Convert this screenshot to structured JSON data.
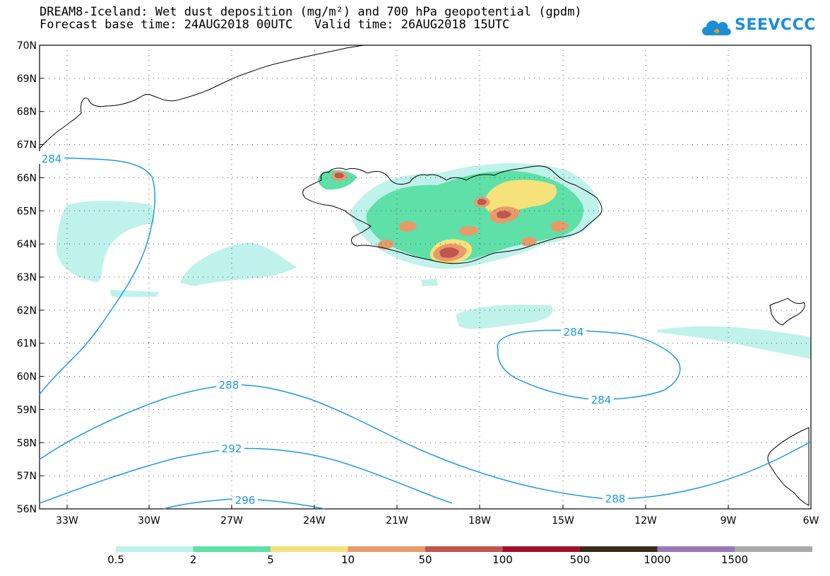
{
  "header": {
    "title_line1": "DREAM8-Iceland: Wet dust deposition (mg/m²) and 700 hPa geopotential (gpdm)",
    "base_label": "Forecast base time: 24AUG2018 00UTC",
    "valid_label": "Valid time: 26AUG2018 15UTC"
  },
  "logo": {
    "text": "SEEVCCC",
    "icon": "cloud-icon"
  },
  "map": {
    "lat_ticks": [
      "70N",
      "69N",
      "68N",
      "67N",
      "66N",
      "65N",
      "64N",
      "63N",
      "62N",
      "61N",
      "60N",
      "59N",
      "58N",
      "57N",
      "56N"
    ],
    "lon_ticks": [
      "33W",
      "30W",
      "27W",
      "24W",
      "21W",
      "18W",
      "15W",
      "12W",
      "9W",
      "6W"
    ],
    "contour_labels": [
      "284",
      "284",
      "284",
      "288",
      "288",
      "292",
      "296"
    ],
    "contour_color": "#1a9be6",
    "coastline_color": "#000000",
    "gridline_style": "dotted"
  },
  "legend": {
    "colors": [
      "#bff2ea",
      "#5ee0a8",
      "#f5e27a",
      "#e89a6a",
      "#c0564e",
      "#a0102c",
      "#3a2a1a",
      "#9a78b8",
      "#aaaaaa"
    ],
    "labels": [
      "0.5",
      "2",
      "5",
      "10",
      "50",
      "100",
      "500",
      "1000",
      "1500"
    ]
  }
}
